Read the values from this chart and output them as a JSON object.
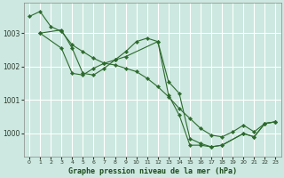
{
  "title": "Graphe pression niveau de la mer (hPa)",
  "bg_color": "#cce8e0",
  "grid_color": "#ffffff",
  "line_color": "#2d6a2d",
  "xlim": [
    -0.5,
    23.5
  ],
  "ylim": [
    999.3,
    1003.9
  ],
  "yticks": [
    1000,
    1001,
    1002,
    1003
  ],
  "xticks": [
    0,
    1,
    2,
    3,
    4,
    5,
    6,
    7,
    8,
    9,
    10,
    11,
    12,
    13,
    14,
    15,
    16,
    17,
    18,
    19,
    20,
    21,
    22,
    23
  ],
  "line1": {
    "x": [
      0,
      1,
      2,
      3,
      4,
      5,
      6,
      7,
      8,
      9,
      10,
      11,
      12,
      13,
      14,
      15,
      16,
      17,
      18,
      19,
      20,
      21,
      22,
      23
    ],
    "y": [
      1003.5,
      1003.65,
      1003.2,
      1003.05,
      1002.65,
      1002.45,
      1002.25,
      1002.1,
      1002.05,
      1001.95,
      1001.85,
      1001.65,
      1001.4,
      1001.1,
      1000.75,
      1000.45,
      1000.15,
      999.95,
      999.9,
      1000.05,
      1000.25,
      1000.05,
      1000.3,
      1000.35
    ]
  },
  "line2": {
    "x": [
      1,
      3,
      4,
      5,
      6,
      7,
      8,
      9,
      10,
      11,
      12,
      13,
      14,
      15,
      16,
      17,
      18,
      20,
      21,
      22,
      23
    ],
    "y": [
      1003.0,
      1003.1,
      1002.55,
      1001.8,
      1001.75,
      1001.95,
      1002.2,
      1002.45,
      1002.75,
      1002.85,
      1002.75,
      1001.55,
      1001.2,
      999.85,
      999.7,
      999.6,
      999.65,
      1000.0,
      999.9,
      1000.3,
      1000.35
    ]
  },
  "line3": {
    "x": [
      1,
      3,
      4,
      5,
      6,
      7,
      8,
      9,
      12,
      13,
      14,
      15,
      16,
      17,
      18,
      20,
      21,
      22,
      23
    ],
    "y": [
      1003.0,
      1002.55,
      1001.8,
      1001.75,
      1001.95,
      1002.1,
      1002.2,
      1002.3,
      1002.75,
      1001.15,
      1000.55,
      999.65,
      999.65,
      999.6,
      999.65,
      1000.0,
      999.9,
      1000.3,
      1000.35
    ]
  }
}
